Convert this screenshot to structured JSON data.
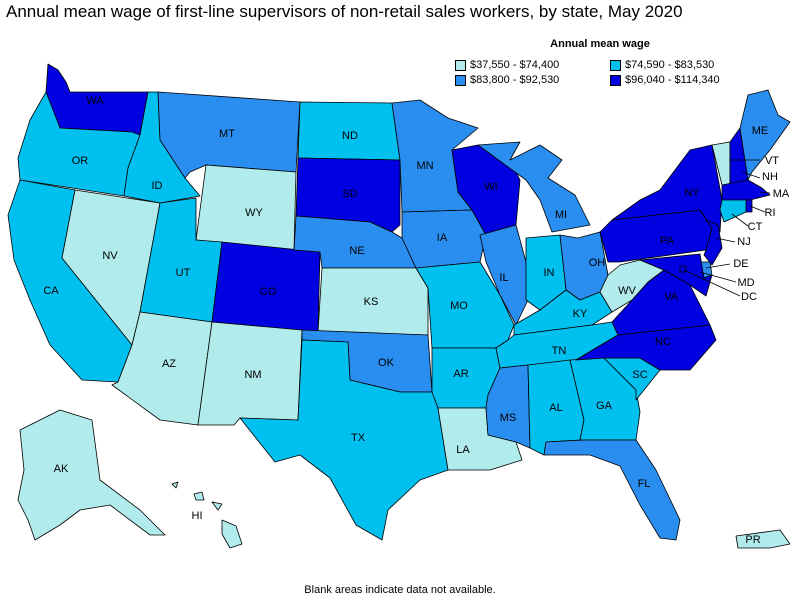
{
  "title": "Annual mean wage of first-line supervisors of non-retail sales workers, by state, May 2020",
  "legend": {
    "title": "Annual mean wage",
    "items": [
      {
        "key": "c1",
        "label": "$37,550 - $74,400",
        "color": "#b2ebeb"
      },
      {
        "key": "c3",
        "label": "$74,590 - $83,530",
        "color": "#00c0f0"
      },
      {
        "key": "c2",
        "label": "$83,800 - $92,530",
        "color": "#2a8df0"
      },
      {
        "key": "c4",
        "label": "$96,040 - $114,340",
        "color": "#0000e0"
      }
    ]
  },
  "footnote": "Blank areas indicate data not available.",
  "states": {
    "WA": {
      "label": "WA",
      "class": "c4"
    },
    "OR": {
      "label": "OR",
      "class": "c3"
    },
    "CA": {
      "label": "CA",
      "class": "c3"
    },
    "NV": {
      "label": "NV",
      "class": "c1"
    },
    "ID": {
      "label": "ID",
      "class": "c3"
    },
    "MT": {
      "label": "MT",
      "class": "c2"
    },
    "WY": {
      "label": "WY",
      "class": "c1"
    },
    "UT": {
      "label": "UT",
      "class": "c3"
    },
    "AZ": {
      "label": "AZ",
      "class": "c1"
    },
    "CO": {
      "label": "CO",
      "class": "c4"
    },
    "NM": {
      "label": "NM",
      "class": "c1"
    },
    "ND": {
      "label": "ND",
      "class": "c3"
    },
    "SD": {
      "label": "SD",
      "class": "c4"
    },
    "NE": {
      "label": "NE",
      "class": "c2"
    },
    "KS": {
      "label": "KS",
      "class": "c1"
    },
    "OK": {
      "label": "OK",
      "class": "c2"
    },
    "TX": {
      "label": "TX",
      "class": "c3"
    },
    "MN": {
      "label": "MN",
      "class": "c2"
    },
    "IA": {
      "label": "IA",
      "class": "c2"
    },
    "MO": {
      "label": "MO",
      "class": "c3"
    },
    "AR": {
      "label": "AR",
      "class": "c3"
    },
    "LA": {
      "label": "LA",
      "class": "c1"
    },
    "WI": {
      "label": "WI",
      "class": "c4"
    },
    "IL": {
      "label": "IL",
      "class": "c2"
    },
    "MI": {
      "label": "MI",
      "class": "c2"
    },
    "IN": {
      "label": "IN",
      "class": "c3"
    },
    "OH": {
      "label": "OH",
      "class": "c2"
    },
    "KY": {
      "label": "KY",
      "class": "c3"
    },
    "TN": {
      "label": "TN",
      "class": "c3"
    },
    "MS": {
      "label": "MS",
      "class": "c2"
    },
    "AL": {
      "label": "AL",
      "class": "c3"
    },
    "GA": {
      "label": "GA",
      "class": "c3"
    },
    "FL": {
      "label": "FL",
      "class": "c2"
    },
    "SC": {
      "label": "SC",
      "class": "c3"
    },
    "NC": {
      "label": "NC",
      "class": "c4"
    },
    "VA": {
      "label": "VA",
      "class": "c4"
    },
    "WV": {
      "label": "WV",
      "class": "c1"
    },
    "PA": {
      "label": "PA",
      "class": "c4"
    },
    "NY": {
      "label": "NY",
      "class": "c4"
    },
    "ME": {
      "label": "ME",
      "class": "c2"
    },
    "VT": {
      "label": "VT",
      "class": "c1"
    },
    "NH": {
      "label": "NH",
      "class": "c4"
    },
    "MA": {
      "label": "MA",
      "class": "c4"
    },
    "RI": {
      "label": "RI",
      "class": "c4"
    },
    "CT": {
      "label": "CT",
      "class": "c3"
    },
    "NJ": {
      "label": "NJ",
      "class": "c4"
    },
    "DE": {
      "label": "DE",
      "class": "c2"
    },
    "MD": {
      "label": "MD",
      "class": "c4"
    },
    "DC": {
      "label": "DC",
      "class": "c4"
    },
    "AK": {
      "label": "AK",
      "class": "c1"
    },
    "HI": {
      "label": "HI",
      "class": "c1"
    },
    "PR": {
      "label": "PR",
      "class": "c1"
    }
  }
}
